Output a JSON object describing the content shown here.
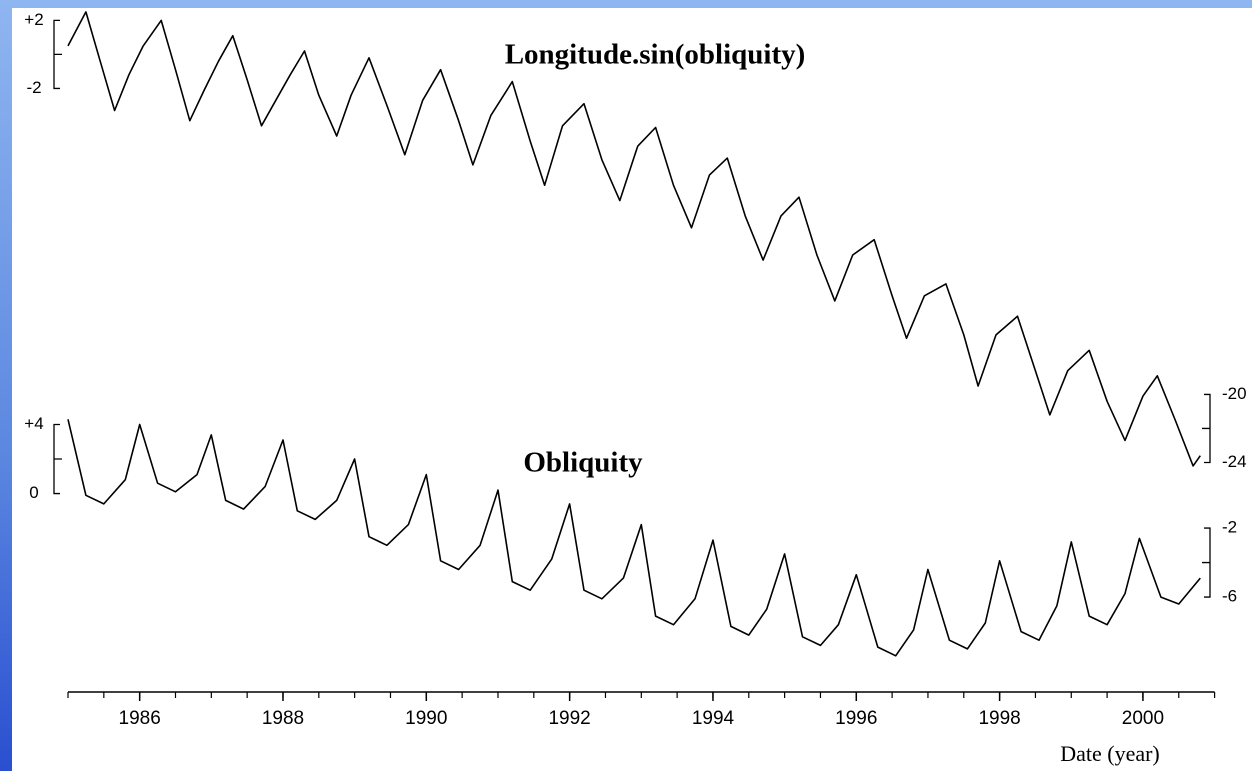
{
  "chart_data": {
    "type": "line",
    "xlabel": "Date (year)",
    "xlim": [
      1985,
      2001
    ],
    "xticks": [
      1986,
      1988,
      1990,
      1992,
      1994,
      1996,
      1998,
      2000
    ],
    "ylim": [
      -37.5,
      3.2
    ],
    "yticks": [
      {
        "value": 2,
        "label": "+2"
      },
      -2
    ],
    "yticks_right": [
      -20,
      -24
    ],
    "y2lim": [
      -11.5,
      28.6
    ],
    "y2ticks": [
      {
        "value": 4,
        "label": "+4"
      },
      0
    ],
    "y2ticks_right": [
      -2,
      -6
    ],
    "series": [
      {
        "name": "Longitude.sin(obliquity)",
        "color": "#000000",
        "x": [
          1985.0,
          1985.25,
          1985.45,
          1985.65,
          1985.85,
          1986.05,
          1986.3,
          1986.5,
          1986.7,
          1986.9,
          1987.1,
          1987.3,
          1987.5,
          1987.7,
          1987.9,
          1988.1,
          1988.3,
          1988.5,
          1988.75,
          1988.95,
          1989.2,
          1989.45,
          1989.7,
          1989.95,
          1990.2,
          1990.45,
          1990.65,
          1990.9,
          1991.2,
          1991.45,
          1991.65,
          1991.9,
          1992.2,
          1992.45,
          1992.7,
          1992.95,
          1993.2,
          1993.45,
          1993.7,
          1993.95,
          1994.2,
          1994.45,
          1994.7,
          1994.95,
          1995.2,
          1995.45,
          1995.7,
          1995.95,
          1996.25,
          1996.5,
          1996.7,
          1996.95,
          1997.25,
          1997.5,
          1997.7,
          1997.95,
          1998.25,
          1998.5,
          1998.7,
          1998.95,
          1999.25,
          1999.5,
          1999.75,
          2000.0,
          2000.2,
          2000.45,
          2000.7,
          2000.8
        ],
        "values": [
          0.5,
          2.5,
          -0.4,
          -3.3,
          -1.2,
          0.5,
          2.0,
          -0.9,
          -3.9,
          -2.1,
          -0.4,
          1.1,
          -1.5,
          -4.2,
          -2.7,
          -1.2,
          0.2,
          -2.4,
          -4.8,
          -2.4,
          -0.2,
          -3.0,
          -5.9,
          -2.7,
          -0.9,
          -3.9,
          -6.5,
          -3.6,
          -1.6,
          -5.1,
          -7.7,
          -4.2,
          -2.9,
          -6.2,
          -8.6,
          -5.4,
          -4.3,
          -7.7,
          -10.2,
          -7.1,
          -6.1,
          -9.5,
          -12.1,
          -9.5,
          -8.4,
          -11.8,
          -14.5,
          -11.8,
          -10.9,
          -14.2,
          -16.7,
          -14.2,
          -13.5,
          -16.5,
          -19.5,
          -16.5,
          -15.4,
          -18.6,
          -21.2,
          -18.6,
          -17.4,
          -20.4,
          -22.7,
          -20.1,
          -18.9,
          -21.5,
          -24.2,
          -23.6
        ]
      },
      {
        "name": "Obliquity",
        "color": "#000000",
        "axis": "y2",
        "x": [
          1985.0,
          1985.25,
          1985.5,
          1985.8,
          1986.0,
          1986.25,
          1986.5,
          1986.8,
          1987.0,
          1987.2,
          1987.45,
          1987.75,
          1988.0,
          1988.2,
          1988.45,
          1988.75,
          1989.0,
          1989.2,
          1989.45,
          1989.75,
          1990.0,
          1990.2,
          1990.45,
          1990.75,
          1991.0,
          1991.2,
          1991.45,
          1991.75,
          1992.0,
          1992.2,
          1992.45,
          1992.75,
          1993.0,
          1993.2,
          1993.45,
          1993.75,
          1994.0,
          1994.25,
          1994.5,
          1994.75,
          1995.0,
          1995.25,
          1995.5,
          1995.75,
          1996.0,
          1996.3,
          1996.55,
          1996.8,
          1997.0,
          1997.3,
          1997.55,
          1997.8,
          1998.0,
          1998.3,
          1998.55,
          1998.8,
          1999.0,
          1999.25,
          1999.5,
          1999.75,
          1999.95,
          2000.25,
          2000.5,
          2000.8
        ],
        "values": [
          4.3,
          -0.1,
          -0.6,
          0.8,
          4.0,
          0.6,
          0.1,
          1.1,
          3.4,
          -0.4,
          -0.9,
          0.4,
          3.1,
          -1.0,
          -1.5,
          -0.4,
          2.0,
          -2.5,
          -3.0,
          -1.8,
          1.1,
          -3.9,
          -4.4,
          -3.0,
          0.2,
          -5.1,
          -5.6,
          -3.8,
          -0.6,
          -5.6,
          -6.1,
          -4.9,
          -1.8,
          -7.1,
          -7.6,
          -6.1,
          -2.7,
          -7.7,
          -8.2,
          -6.7,
          -3.5,
          -8.3,
          -8.8,
          -7.6,
          -4.7,
          -8.9,
          -9.4,
          -7.9,
          -4.4,
          -8.5,
          -9.0,
          -7.5,
          -3.9,
          -8.0,
          -8.5,
          -6.5,
          -2.8,
          -7.1,
          -7.6,
          -5.8,
          -2.6,
          -6.0,
          -6.4,
          -4.9
        ]
      }
    ]
  }
}
